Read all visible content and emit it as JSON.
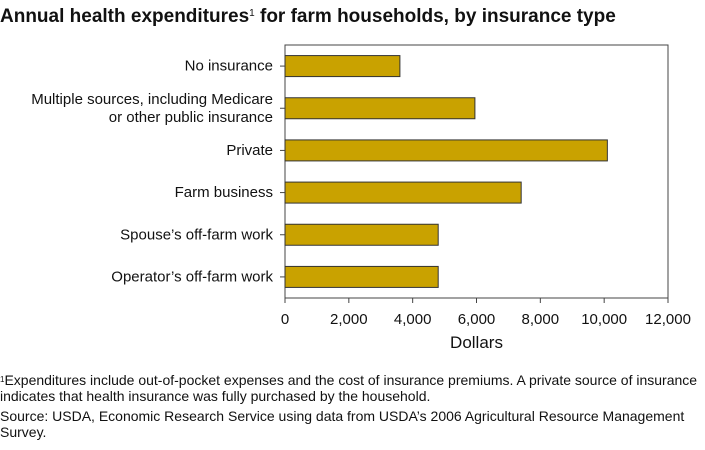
{
  "chart_data": {
    "type": "bar",
    "orientation": "horizontal",
    "title": "Annual health expenditures",
    "title_sup": "1",
    "title_suffix": " for farm households, by insurance type",
    "categories": [
      [
        "No insurance"
      ],
      [
        "Multiple sources, including Medicare",
        "or other public insurance"
      ],
      [
        "Private"
      ],
      [
        "Farm business"
      ],
      [
        "Spouse’s off-farm work"
      ],
      [
        "Operator’s off-farm work"
      ]
    ],
    "values": [
      3600,
      5950,
      10100,
      7400,
      4800,
      4800
    ],
    "xlabel": "Dollars",
    "xlim": [
      0,
      12000
    ],
    "xticks": [
      0,
      2000,
      4000,
      6000,
      8000,
      10000,
      12000
    ],
    "xtick_labels": [
      "0",
      "2,000",
      "4,000",
      "6,000",
      "8,000",
      "10,000",
      "12,000"
    ],
    "grid": false,
    "bar_color": "#c9a200"
  },
  "notes": {
    "footnote_marker": "1",
    "footnote_text": "Expenditures include out-of-pocket expenses and the cost of insurance premiums. A private source of insurance indicates that health insurance was fully purchased by the household.",
    "source": "Source: USDA, Economic Research Service using data from USDA’s 2006 Agricultural Resource Management Survey."
  }
}
